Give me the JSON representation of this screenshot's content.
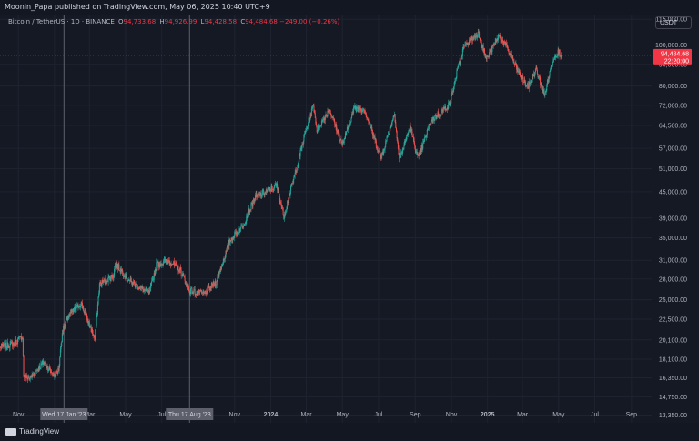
{
  "published": "Moonin_Papa published on TradingView.com, May 06, 2025 10:40 UTC+9",
  "legend": {
    "symbol": "Bitcoin / TetherUS · 1D · BINANCE",
    "o_key": "O",
    "o_val": "94,733.68",
    "h_key": "H",
    "h_val": "94,926.99",
    "l_key": "L",
    "l_val": "94,428.58",
    "c_key": "C",
    "c_val": "94,484.68",
    "chg": "−249.00 (−0.26%)"
  },
  "currency": "USDT",
  "brand": "TradingView",
  "colors": {
    "up": "#26a69a",
    "down": "#ef5350",
    "price_label": "#f23645",
    "bg": "#151924",
    "grid": "#1f2330",
    "text": "#b2b5be"
  },
  "chart_data": {
    "type": "candlestick",
    "scale": "log",
    "ylim": [
      12800,
      118000
    ],
    "y_ticks": [
      13350,
      14750,
      16350,
      18100,
      20100,
      22500,
      25000,
      28000,
      31000,
      35000,
      39000,
      45000,
      51000,
      57000,
      64500,
      72000,
      80000,
      90000,
      100000,
      115000
    ],
    "y_tick_labels": [
      "13,350.00",
      "14,750.00",
      "16,350.00",
      "18,100.00",
      "20,100.00",
      "22,500.00",
      "25,000.00",
      "28,000.00",
      "31,000.00",
      "35,000.00",
      "39,000.00",
      "45,000.00",
      "51,000.00",
      "57,000.00",
      "64,500.00",
      "72,000.00",
      "80,000.00",
      "90,000.00",
      "100,000.00",
      "115,000.00"
    ],
    "x_labels": [
      "Nov",
      "2023",
      "Mar",
      "May",
      "Jul",
      "Nov",
      "2024",
      "Mar",
      "May",
      "Jul",
      "Sep",
      "Nov",
      "2025",
      "Mar",
      "May",
      "Jul",
      "Sep"
    ],
    "x_label_dates": [
      "2022-11-01",
      "2023-01-01",
      "2023-03-01",
      "2023-05-01",
      "2023-07-01",
      "2023-11-01",
      "2024-01-01",
      "2024-03-01",
      "2024-05-01",
      "2024-07-01",
      "2024-09-01",
      "2024-11-01",
      "2025-01-01",
      "2025-03-01",
      "2025-05-01",
      "2025-07-01",
      "2025-09-01"
    ],
    "x_range": [
      "2022-10-01",
      "2025-10-05"
    ],
    "last_price": {
      "value": 94484.68,
      "label": "94,484.68",
      "countdown": "22:20:00"
    },
    "crosshair_labels": [
      {
        "date": "2023-01-17",
        "label": "Wed 17 Jan '23"
      },
      {
        "date": "2023-08-17",
        "label": "Thu 17 Aug '23"
      }
    ],
    "price_path": [
      [
        "2022-10-01",
        19300
      ],
      [
        "2022-10-25",
        19700
      ],
      [
        "2022-11-08",
        20500
      ],
      [
        "2022-11-10",
        16500
      ],
      [
        "2022-11-20",
        16300
      ],
      [
        "2022-12-14",
        17800
      ],
      [
        "2022-12-31",
        16550
      ],
      [
        "2023-01-08",
        17100
      ],
      [
        "2023-01-14",
        20900
      ],
      [
        "2023-01-25",
        23000
      ],
      [
        "2023-02-15",
        24500
      ],
      [
        "2023-03-10",
        20200
      ],
      [
        "2023-03-18",
        27200
      ],
      [
        "2023-04-10",
        28500
      ],
      [
        "2023-04-14",
        30400
      ],
      [
        "2023-05-10",
        27500
      ],
      [
        "2023-06-10",
        25900
      ],
      [
        "2023-06-22",
        30200
      ],
      [
        "2023-07-13",
        31000
      ],
      [
        "2023-08-01",
        29400
      ],
      [
        "2023-08-17",
        26300
      ],
      [
        "2023-09-10",
        25800
      ],
      [
        "2023-10-01",
        27600
      ],
      [
        "2023-10-24",
        34500
      ],
      [
        "2023-11-15",
        37500
      ],
      [
        "2023-12-05",
        43500
      ],
      [
        "2024-01-11",
        46500
      ],
      [
        "2024-01-23",
        39500
      ],
      [
        "2024-02-15",
        52000
      ],
      [
        "2024-02-28",
        62000
      ],
      [
        "2024-03-13",
        72000
      ],
      [
        "2024-03-19",
        63000
      ],
      [
        "2024-04-09",
        70500
      ],
      [
        "2024-05-01",
        58000
      ],
      [
        "2024-05-21",
        71000
      ],
      [
        "2024-06-07",
        70500
      ],
      [
        "2024-07-05",
        54000
      ],
      [
        "2024-07-28",
        69000
      ],
      [
        "2024-08-05",
        53500
      ],
      [
        "2024-08-23",
        64000
      ],
      [
        "2024-09-06",
        53800
      ],
      [
        "2024-09-27",
        66000
      ],
      [
        "2024-10-29",
        72500
      ],
      [
        "2024-11-12",
        88000
      ],
      [
        "2024-11-22",
        99000
      ],
      [
        "2024-12-05",
        103000
      ],
      [
        "2024-12-17",
        106500
      ],
      [
        "2024-12-30",
        92500
      ],
      [
        "2025-01-20",
        105000
      ],
      [
        "2025-02-02",
        99000
      ],
      [
        "2025-02-26",
        84000
      ],
      [
        "2025-03-10",
        79500
      ],
      [
        "2025-03-24",
        87500
      ],
      [
        "2025-04-07",
        76000
      ],
      [
        "2025-04-22",
        93500
      ],
      [
        "2025-05-01",
        96500
      ],
      [
        "2025-05-06",
        94485
      ]
    ]
  }
}
